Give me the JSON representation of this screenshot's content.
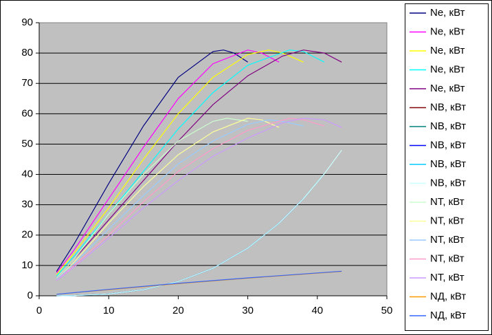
{
  "chart_data": {
    "type": "line",
    "xlim": [
      0,
      50
    ],
    "xticks": [
      0,
      10,
      20,
      30,
      40,
      50
    ],
    "ylim": [
      0,
      90
    ],
    "yticks": [
      0,
      10,
      20,
      30,
      40,
      50,
      60,
      70,
      80,
      90
    ],
    "grid": true,
    "legend": "right",
    "series": [
      {
        "name": "Ne, кВт",
        "color": "#000080",
        "x": [
          2.5,
          5,
          10,
          15,
          20,
          25,
          26.5,
          28,
          30
        ],
        "values": [
          8,
          17,
          37,
          56,
          72,
          80.5,
          81,
          80,
          77
        ]
      },
      {
        "name": "Ne, кВт",
        "color": "#FF00FF",
        "x": [
          2.5,
          5,
          10,
          15,
          20,
          25,
          30,
          32,
          34.5
        ],
        "values": [
          7.5,
          15,
          32,
          49,
          65,
          76.5,
          81,
          80,
          77
        ]
      },
      {
        "name": "Ne, кВт",
        "color": "#FFFF00",
        "x": [
          2.5,
          5,
          10,
          15,
          20,
          25,
          30,
          33,
          35,
          38
        ],
        "values": [
          7,
          14,
          29,
          45,
          60,
          72,
          79.5,
          81,
          80,
          77
        ]
      },
      {
        "name": "Ne, кВт",
        "color": "#00FFFF",
        "x": [
          2.5,
          5,
          10,
          15,
          20,
          25,
          30,
          36,
          38,
          41
        ],
        "values": [
          6.5,
          13,
          27,
          41,
          55,
          67,
          76,
          81,
          80.5,
          77
        ]
      },
      {
        "name": "Ne, кВт",
        "color": "#800080",
        "x": [
          2.5,
          5,
          10,
          15,
          20,
          25,
          30,
          35,
          38,
          41,
          43.5
        ],
        "values": [
          6,
          12,
          25,
          38,
          51,
          63,
          72.5,
          79,
          81,
          80,
          77
        ]
      },
      {
        "name": "NB, кВт",
        "color": "#800000",
        "x": [
          2.5,
          5,
          10,
          15,
          20,
          25,
          30
        ],
        "values": [
          0.01,
          0.07,
          0.6,
          2,
          4.7,
          9.1,
          15.7
        ]
      },
      {
        "name": "NB, кВт",
        "color": "#008080",
        "x": [
          2.5,
          5,
          10,
          15,
          20,
          25,
          30,
          34.5
        ],
        "values": [
          0.01,
          0.07,
          0.6,
          2,
          4.7,
          9.1,
          15.7,
          23.9
        ]
      },
      {
        "name": "NB, кВт",
        "color": "#0000FF",
        "x": [
          2.5,
          5,
          10,
          15,
          20,
          25,
          30,
          34.5,
          38
        ],
        "values": [
          0.01,
          0.07,
          0.6,
          2,
          4.7,
          9.1,
          15.7,
          23.9,
          32
        ]
      },
      {
        "name": "NB, кВт",
        "color": "#00CCFF",
        "x": [
          2.5,
          5,
          10,
          15,
          20,
          25,
          30,
          34.5,
          38,
          41
        ],
        "values": [
          0.01,
          0.07,
          0.6,
          2,
          4.7,
          9.1,
          15.7,
          23.9,
          32,
          40.2
        ]
      },
      {
        "name": "NB, кВт",
        "color": "#CCFFFF",
        "x": [
          2.5,
          5,
          10,
          15,
          20,
          25,
          30,
          34.5,
          38,
          41,
          43.5
        ],
        "values": [
          0.01,
          0.07,
          0.6,
          2,
          4.7,
          9.1,
          15.7,
          23.9,
          32,
          40.2,
          48
        ]
      },
      {
        "name": "NT, кВт",
        "color": "#CCFFCC",
        "x": [
          2.5,
          5,
          10,
          15,
          20,
          25,
          27,
          30
        ],
        "values": [
          6,
          12,
          27,
          40,
          51,
          57.5,
          58.5,
          57.5
        ]
      },
      {
        "name": "NT, кВт",
        "color": "#FFFF99",
        "x": [
          2.5,
          5,
          10,
          15,
          20,
          25,
          30,
          32,
          34.5
        ],
        "values": [
          5.5,
          11,
          24,
          36,
          46.5,
          54,
          58.5,
          58,
          55.5
        ]
      },
      {
        "name": "NT, кВт",
        "color": "#99CCFF",
        "x": [
          2.5,
          5,
          10,
          15,
          20,
          25,
          30,
          33,
          35,
          38
        ],
        "values": [
          5.5,
          10.5,
          22,
          33,
          43.5,
          51,
          56.5,
          58,
          57.5,
          56
        ]
      },
      {
        "name": "NT, кВт",
        "color": "#FF99CC",
        "x": [
          2.5,
          5,
          10,
          15,
          20,
          25,
          30,
          36,
          38,
          41
        ],
        "values": [
          5,
          10,
          20,
          31,
          41,
          48.5,
          54.5,
          58.5,
          58,
          56
        ]
      },
      {
        "name": "NT, кВт",
        "color": "#CC99FF",
        "x": [
          2.5,
          5,
          10,
          15,
          20,
          25,
          30,
          35,
          38,
          41,
          43.5
        ],
        "values": [
          5,
          9.5,
          19,
          29,
          38,
          46,
          52,
          57,
          58.5,
          58,
          55.5
        ]
      },
      {
        "name": "NД, кВт",
        "color": "#FF9900",
        "x": [
          2.5,
          10,
          20,
          30,
          43.5
        ],
        "values": [
          0.5,
          2,
          4,
          5.8,
          8
        ]
      },
      {
        "name": "NД, кВт",
        "color": "#3366FF",
        "x": [
          2.5,
          10,
          20,
          30,
          43.5
        ],
        "values": [
          0.5,
          2.1,
          4.1,
          5.9,
          8.1
        ]
      }
    ]
  }
}
